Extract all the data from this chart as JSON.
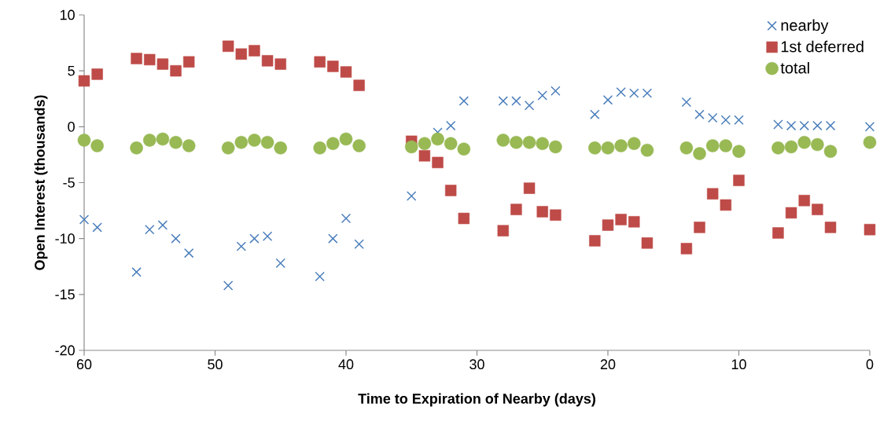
{
  "chart_data": {
    "type": "scatter",
    "xlabel": "Time to Expiration of Nearby (days)",
    "ylabel": "Open Interest (thousands)",
    "x": [
      60,
      59,
      56,
      55,
      54,
      53,
      52,
      49,
      48,
      47,
      46,
      45,
      42,
      41,
      40,
      39,
      35,
      34,
      33,
      32,
      31,
      28,
      27,
      26,
      25,
      24,
      21,
      20,
      19,
      18,
      17,
      14,
      13,
      12,
      11,
      10,
      7,
      6,
      5,
      4,
      3,
      0
    ],
    "series": [
      {
        "name": "nearby",
        "color": "#4a7ebb",
        "marker": "cross",
        "values": [
          -8.3,
          -9.0,
          -13.0,
          -9.2,
          -8.8,
          -10.0,
          -11.3,
          -14.2,
          -10.7,
          -10.0,
          -9.8,
          -12.2,
          -13.4,
          -10.0,
          -8.2,
          -10.5,
          -6.2,
          null,
          -0.5,
          0.1,
          2.3,
          2.3,
          2.3,
          1.9,
          2.8,
          3.2,
          1.1,
          2.4,
          3.1,
          3.0,
          3.0,
          2.2,
          1.1,
          0.8,
          0.6,
          0.6,
          0.2,
          0.1,
          0.1,
          0.1,
          0.1,
          0
        ]
      },
      {
        "name": "1st deferred",
        "color": "#be4b48",
        "marker": "square",
        "values": [
          4.1,
          4.7,
          6.1,
          6.0,
          5.6,
          5.0,
          5.8,
          7.2,
          6.5,
          6.8,
          5.9,
          5.6,
          5.8,
          5.4,
          4.9,
          3.7,
          -1.3,
          -2.6,
          -3.2,
          -5.7,
          -8.2,
          -9.3,
          -7.4,
          -5.5,
          -7.6,
          -7.9,
          -10.2,
          -8.8,
          -8.3,
          -8.5,
          -10.4,
          -10.9,
          -9.0,
          -6.0,
          -7.0,
          -4.8,
          -9.5,
          -7.7,
          -6.6,
          -7.4,
          -9.0,
          -9.2
        ]
      },
      {
        "name": "total",
        "color": "#98b954",
        "marker": "circle",
        "values": [
          -1.2,
          -1.7,
          -1.9,
          -1.2,
          -1.1,
          -1.4,
          -1.7,
          -1.9,
          -1.4,
          -1.2,
          -1.4,
          -1.9,
          -1.9,
          -1.5,
          -1.1,
          -1.7,
          -1.8,
          -1.5,
          -1.1,
          -1.5,
          -2.0,
          -1.2,
          -1.4,
          -1.4,
          -1.5,
          -1.8,
          -1.9,
          -1.9,
          -1.7,
          -1.5,
          -2.1,
          -1.9,
          -2.4,
          -1.7,
          -1.7,
          -2.2,
          -1.9,
          -1.8,
          -1.4,
          -1.6,
          -2.2,
          -1.4
        ]
      }
    ],
    "xlim": [
      60,
      0
    ],
    "xticks": [
      60,
      50,
      40,
      30,
      20,
      10,
      0
    ],
    "ylim": [
      -20,
      10
    ],
    "yticks": [
      -20,
      -15,
      -10,
      -5,
      0,
      5,
      10
    ],
    "legend": "top right",
    "grid": false
  }
}
